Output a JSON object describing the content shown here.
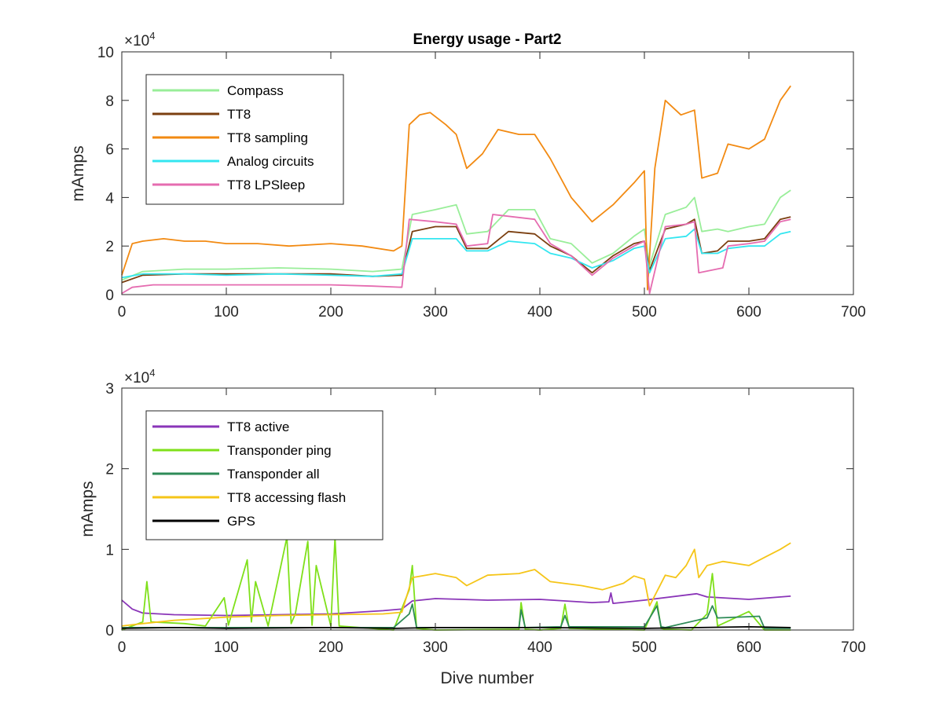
{
  "chart_data": [
    {
      "type": "line",
      "title": "Energy usage - Part2",
      "xlabel": "",
      "ylabel": "mAmps",
      "xlim": [
        0,
        700
      ],
      "ylim": [
        0,
        100000
      ],
      "exponent_label": "×10",
      "exponent_power": "4",
      "xticks": [
        "0",
        "100",
        "200",
        "300",
        "400",
        "500",
        "600",
        "700"
      ],
      "yticks": [
        "0",
        "2",
        "4",
        "6",
        "8",
        "10"
      ],
      "legend_position": "top-left",
      "grid": false,
      "series": [
        {
          "name": "Compass",
          "color": "#99EE99",
          "x": [
            0,
            20,
            60,
            100,
            150,
            200,
            240,
            268,
            278,
            300,
            320,
            330,
            350,
            370,
            395,
            410,
            430,
            450,
            470,
            490,
            500,
            505,
            520,
            540,
            548,
            555,
            570,
            580,
            600,
            615,
            630,
            640
          ],
          "y": [
            6000,
            9500,
            10500,
            10500,
            11000,
            10500,
            9500,
            10500,
            33000,
            35000,
            37000,
            25000,
            26000,
            35000,
            35000,
            23000,
            21000,
            13000,
            17000,
            24000,
            27000,
            12000,
            33000,
            36000,
            40000,
            26000,
            27000,
            26000,
            28000,
            29000,
            40000,
            43000
          ]
        },
        {
          "name": "TT8",
          "color": "#7B3F10",
          "x": [
            0,
            20,
            60,
            100,
            150,
            200,
            240,
            268,
            278,
            300,
            320,
            330,
            350,
            370,
            395,
            410,
            430,
            450,
            470,
            490,
            500,
            505,
            520,
            540,
            548,
            555,
            570,
            580,
            600,
            615,
            630,
            640
          ],
          "y": [
            5000,
            8000,
            8500,
            8500,
            8500,
            8500,
            7500,
            8000,
            26000,
            28000,
            28000,
            19000,
            19000,
            26000,
            25000,
            20000,
            16000,
            9000,
            16000,
            21000,
            22000,
            10000,
            27000,
            29000,
            31000,
            17000,
            18000,
            22000,
            22000,
            23000,
            31000,
            32000
          ]
        },
        {
          "name": "TT8 sampling",
          "color": "#F28A12",
          "x": [
            0,
            10,
            20,
            40,
            60,
            80,
            100,
            130,
            160,
            200,
            230,
            260,
            268,
            275,
            285,
            295,
            310,
            320,
            330,
            345,
            360,
            380,
            395,
            410,
            430,
            450,
            470,
            490,
            500,
            503,
            510,
            520,
            535,
            548,
            555,
            570,
            580,
            600,
            615,
            630,
            640
          ],
          "y": [
            8000,
            21000,
            22000,
            23000,
            22000,
            22000,
            21000,
            21000,
            20000,
            21000,
            20000,
            18000,
            20000,
            70000,
            74000,
            75000,
            70000,
            66000,
            52000,
            58000,
            68000,
            66000,
            66000,
            56000,
            40000,
            30000,
            37000,
            46000,
            51000,
            2000,
            52000,
            80000,
            74000,
            76000,
            48000,
            50000,
            62000,
            60000,
            64000,
            80000,
            86000
          ]
        },
        {
          "name": "Analog circuits",
          "color": "#33E6F0",
          "x": [
            0,
            20,
            60,
            100,
            150,
            200,
            240,
            268,
            278,
            300,
            320,
            330,
            350,
            370,
            395,
            410,
            430,
            450,
            470,
            490,
            500,
            505,
            520,
            540,
            548,
            555,
            570,
            580,
            600,
            615,
            630,
            640
          ],
          "y": [
            7000,
            8500,
            8500,
            8000,
            8500,
            8000,
            7500,
            8500,
            23000,
            23000,
            23000,
            18000,
            18000,
            22000,
            21000,
            17000,
            15000,
            11000,
            14000,
            19000,
            20000,
            9000,
            23000,
            24000,
            27000,
            17000,
            17000,
            19000,
            20000,
            20000,
            25000,
            26000
          ]
        },
        {
          "name": "TT8 LPSleep",
          "color": "#E56CB0",
          "x": [
            0,
            10,
            30,
            60,
            100,
            150,
            200,
            240,
            268,
            275,
            300,
            320,
            330,
            350,
            355,
            395,
            410,
            430,
            450,
            470,
            490,
            500,
            505,
            520,
            540,
            548,
            552,
            575,
            580,
            600,
            615,
            630,
            640
          ],
          "y": [
            500,
            3000,
            4000,
            4000,
            4000,
            4000,
            4000,
            3500,
            3000,
            31000,
            30000,
            29000,
            20000,
            21000,
            33000,
            31000,
            21000,
            16000,
            8000,
            15000,
            20000,
            22000,
            500,
            28000,
            29000,
            30000,
            9000,
            11000,
            20000,
            21000,
            22000,
            30000,
            31000
          ]
        }
      ]
    },
    {
      "type": "line",
      "title": "",
      "xlabel": "Dive number",
      "ylabel": "mAmps",
      "xlim": [
        0,
        700
      ],
      "ylim": [
        0,
        30000
      ],
      "exponent_label": "×10",
      "exponent_power": "4",
      "xticks": [
        "0",
        "100",
        "200",
        "300",
        "400",
        "500",
        "600",
        "700"
      ],
      "yticks": [
        "0",
        "1",
        "2",
        "3"
      ],
      "legend_position": "top-left",
      "grid": false,
      "series": [
        {
          "name": "TT8 active",
          "color": "#8A35B8",
          "x": [
            0,
            10,
            20,
            50,
            100,
            150,
            200,
            250,
            268,
            278,
            300,
            350,
            400,
            450,
            466,
            468,
            470,
            500,
            550,
            560,
            600,
            640
          ],
          "y": [
            3700,
            2600,
            2100,
            1900,
            1800,
            1900,
            2000,
            2400,
            2600,
            3600,
            3900,
            3700,
            3800,
            3400,
            3500,
            4600,
            3300,
            3700,
            4500,
            4100,
            3800,
            4200
          ]
        },
        {
          "name": "Transponder ping",
          "color": "#7FE01A",
          "x": [
            0,
            20,
            24,
            28,
            60,
            80,
            98,
            102,
            120,
            124,
            128,
            140,
            158,
            162,
            166,
            178,
            182,
            186,
            200,
            204,
            208,
            260,
            275,
            278,
            282,
            300,
            380,
            382,
            386,
            400,
            420,
            424,
            428,
            500,
            512,
            516,
            520,
            545,
            560,
            565,
            570,
            600,
            615,
            640
          ],
          "y": [
            0,
            1000,
            6000,
            1000,
            800,
            500,
            4000,
            600,
            8700,
            1000,
            6000,
            500,
            11500,
            800,
            2000,
            11000,
            600,
            8000,
            500,
            11500,
            500,
            0,
            5000,
            8000,
            200,
            0,
            100,
            3400,
            100,
            0,
            200,
            3200,
            200,
            0,
            3500,
            200,
            100,
            0,
            2000,
            7000,
            500,
            2300,
            0,
            0
          ]
        },
        {
          "name": "Transponder all",
          "color": "#2E8B57",
          "x": [
            0,
            100,
            260,
            275,
            278,
            282,
            300,
            380,
            382,
            386,
            420,
            424,
            428,
            500,
            512,
            516,
            520,
            560,
            565,
            570,
            610,
            615,
            640
          ],
          "y": [
            300,
            300,
            300,
            2000,
            3200,
            300,
            300,
            300,
            2500,
            300,
            400,
            1800,
            400,
            400,
            3000,
            400,
            300,
            1500,
            3000,
            1500,
            1700,
            200,
            200
          ]
        },
        {
          "name": "TT8 accessing flash",
          "color": "#F5C518",
          "x": [
            0,
            20,
            50,
            100,
            150,
            200,
            250,
            268,
            278,
            300,
            320,
            330,
            350,
            380,
            395,
            410,
            440,
            460,
            480,
            490,
            500,
            505,
            520,
            530,
            540,
            548,
            552,
            560,
            575,
            600,
            615,
            630,
            640
          ],
          "y": [
            500,
            800,
            1200,
            1600,
            1800,
            1900,
            2000,
            2200,
            6500,
            7000,
            6500,
            5500,
            6800,
            7000,
            7500,
            6000,
            5500,
            5000,
            5800,
            6700,
            6300,
            3000,
            6800,
            6500,
            8000,
            10000,
            6500,
            8000,
            8500,
            8000,
            9000,
            10000,
            10800
          ]
        },
        {
          "name": "GPS",
          "color": "#000000",
          "x": [
            0,
            50,
            100,
            200,
            260,
            300,
            400,
            500,
            550,
            600,
            640
          ],
          "y": [
            200,
            300,
            200,
            300,
            200,
            300,
            300,
            200,
            300,
            400,
            300
          ]
        }
      ]
    }
  ]
}
